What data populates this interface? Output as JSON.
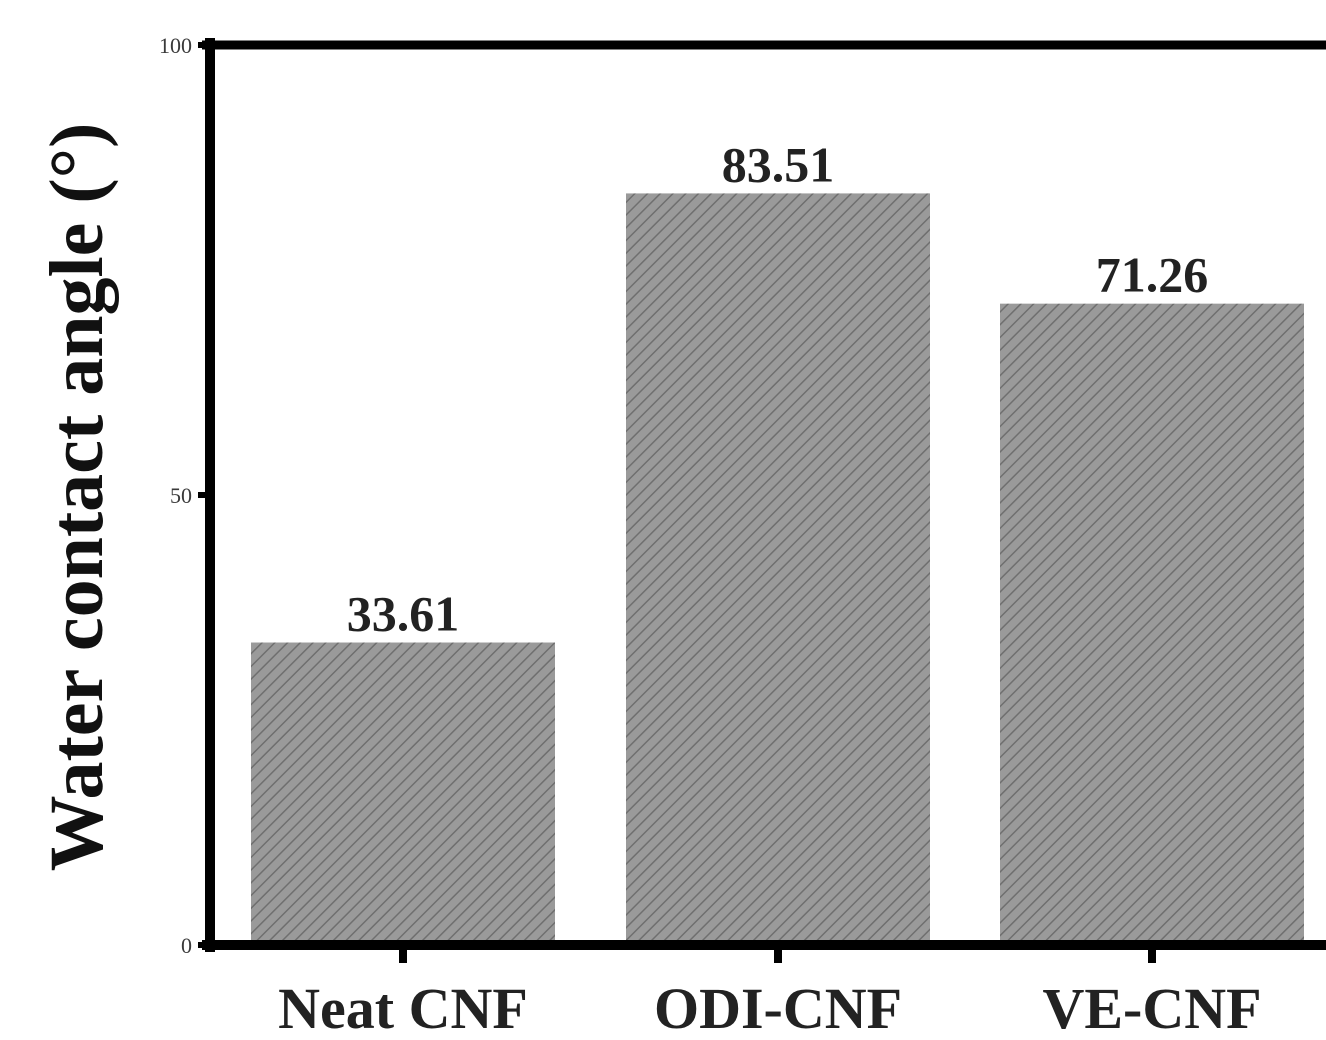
{
  "chart_data": {
    "type": "bar",
    "title": "",
    "xlabel": "",
    "ylabel": "Water contact angle (°)",
    "ylim": [
      0,
      100
    ],
    "yticks": [
      0,
      50,
      100
    ],
    "ytick_labels": [
      "0",
      "50",
      "100"
    ],
    "categories": [
      "Neat CNF",
      "ODI-CNF",
      "VE-CNF"
    ],
    "values": [
      33.61,
      83.51,
      71.26
    ],
    "data_labels": [
      "33.61",
      "83.51",
      "71.26"
    ],
    "grid": false,
    "legend": "none",
    "bar_fill": "hatched",
    "colors": {
      "bar": "#9a9a9a",
      "hatch": "#6f6f6f",
      "axis": "#000000"
    }
  }
}
